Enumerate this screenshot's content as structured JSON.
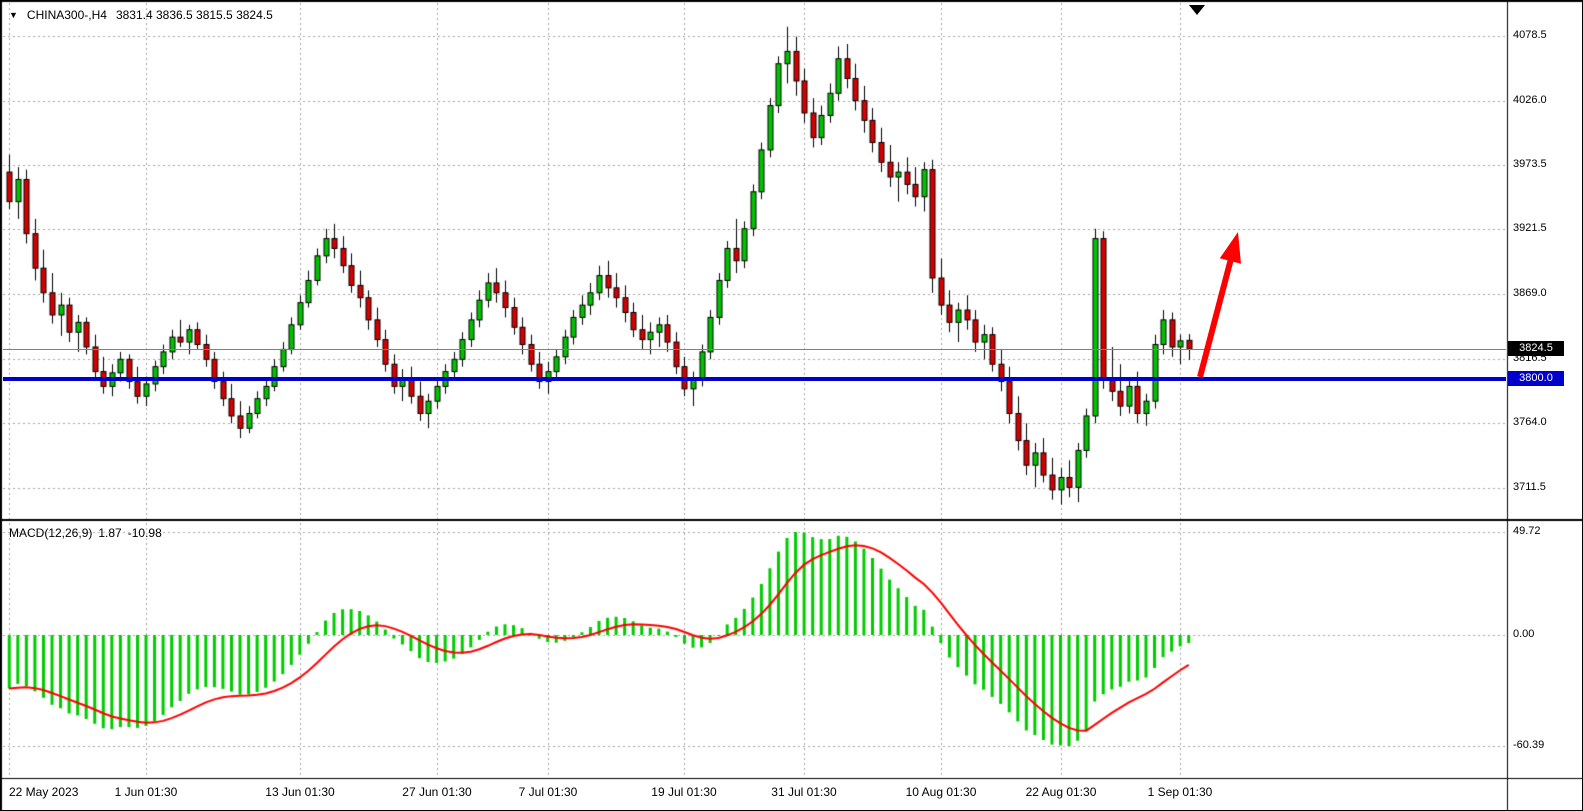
{
  "header": {
    "dropdown_icon": "▼",
    "symbol_period": "CHINA300-,H4",
    "ohlc_values": "3831.4 3836.5 3815.5 3824.5"
  },
  "price_scale": {
    "current_price_label": "3824.5",
    "hline_label": "3800.0"
  },
  "macd_panel": {
    "name": "MACD(12,26,9)",
    "main_value": "1.87",
    "signal_value": "-10.98"
  },
  "colors": {
    "bull": "#00C400",
    "bear": "#D80000",
    "wick": "#000000",
    "grid": "#A6A6A6",
    "hline": "#0000CD",
    "current_price_line": "#808080",
    "signal": "#FF0000",
    "histogram": "#00CC00",
    "badge_current_bg": "#000000",
    "badge_hline_bg": "#0000CD",
    "arrow": "#FF0000",
    "text": "#000000"
  },
  "chart_data": [
    {
      "type": "candlestick",
      "title": "CHINA300-,H4",
      "timeframe": "H4",
      "grid": "dashed",
      "legend_position": "none",
      "ylim": [
        3686,
        4107
      ],
      "y_ticks": [
        4078.5,
        4026.0,
        3973.5,
        3921.5,
        3869.0,
        3816.5,
        3764.0,
        3711.5
      ],
      "x_tick_labels": [
        "22 May 2023",
        "1 Jun 01:30",
        "13 Jun 01:30",
        "27 Jun 01:30",
        "7 Jul 01:30",
        "19 Jul 01:30",
        "31 Jul 01:30",
        "10 Aug 01:30",
        "22 Aug 01:30",
        "1 Sep 01:30"
      ],
      "x_tick_indices": [
        0,
        16,
        34,
        50,
        63,
        79,
        93,
        109,
        123,
        137
      ],
      "current_price": 3824.5,
      "support_line": {
        "value": 3800.0,
        "label": "3800.0"
      },
      "annotations": [
        {
          "type": "arrow-up",
          "meaning": "bullish-projection"
        }
      ],
      "ohlc": [
        [
          3968,
          3982,
          3938,
          3944
        ],
        [
          3944,
          3972,
          3930,
          3962
        ],
        [
          3962,
          3970,
          3910,
          3918
        ],
        [
          3918,
          3930,
          3880,
          3890
        ],
        [
          3890,
          3905,
          3862,
          3870
        ],
        [
          3870,
          3886,
          3845,
          3852
        ],
        [
          3852,
          3870,
          3835,
          3860
        ],
        [
          3860,
          3866,
          3830,
          3838
        ],
        [
          3838,
          3852,
          3822,
          3846
        ],
        [
          3846,
          3850,
          3820,
          3826
        ],
        [
          3826,
          3836,
          3800,
          3806
        ],
        [
          3806,
          3818,
          3788,
          3794
        ],
        [
          3794,
          3812,
          3786,
          3805
        ],
        [
          3805,
          3822,
          3798,
          3816
        ],
        [
          3816,
          3820,
          3792,
          3798
        ],
        [
          3798,
          3810,
          3780,
          3786
        ],
        [
          3786,
          3802,
          3778,
          3796
        ],
        [
          3796,
          3815,
          3790,
          3810
        ],
        [
          3810,
          3828,
          3804,
          3822
        ],
        [
          3822,
          3840,
          3816,
          3834
        ],
        [
          3834,
          3848,
          3826,
          3830
        ],
        [
          3830,
          3844,
          3820,
          3840
        ],
        [
          3840,
          3846,
          3824,
          3828
        ],
        [
          3828,
          3836,
          3810,
          3816
        ],
        [
          3816,
          3822,
          3792,
          3798
        ],
        [
          3798,
          3806,
          3778,
          3784
        ],
        [
          3784,
          3796,
          3764,
          3770
        ],
        [
          3770,
          3782,
          3752,
          3760
        ],
        [
          3760,
          3778,
          3756,
          3772
        ],
        [
          3772,
          3790,
          3768,
          3784
        ],
        [
          3784,
          3800,
          3778,
          3794
        ],
        [
          3794,
          3816,
          3790,
          3810
        ],
        [
          3810,
          3830,
          3806,
          3824
        ],
        [
          3824,
          3850,
          3820,
          3844
        ],
        [
          3844,
          3868,
          3840,
          3862
        ],
        [
          3862,
          3888,
          3858,
          3880
        ],
        [
          3880,
          3906,
          3876,
          3900
        ],
        [
          3900,
          3922,
          3894,
          3914
        ],
        [
          3914,
          3926,
          3898,
          3906
        ],
        [
          3906,
          3916,
          3886,
          3892
        ],
        [
          3892,
          3902,
          3870,
          3876
        ],
        [
          3876,
          3888,
          3858,
          3866
        ],
        [
          3866,
          3872,
          3840,
          3848
        ],
        [
          3848,
          3858,
          3826,
          3832
        ],
        [
          3832,
          3840,
          3806,
          3812
        ],
        [
          3812,
          3820,
          3788,
          3794
        ],
        [
          3794,
          3808,
          3782,
          3800
        ],
        [
          3800,
          3810,
          3780,
          3786
        ],
        [
          3786,
          3798,
          3766,
          3772
        ],
        [
          3772,
          3788,
          3760,
          3782
        ],
        [
          3782,
          3800,
          3776,
          3794
        ],
        [
          3794,
          3812,
          3788,
          3806
        ],
        [
          3806,
          3822,
          3800,
          3816
        ],
        [
          3816,
          3838,
          3810,
          3832
        ],
        [
          3832,
          3854,
          3826,
          3848
        ],
        [
          3848,
          3872,
          3842,
          3864
        ],
        [
          3864,
          3886,
          3858,
          3878
        ],
        [
          3878,
          3890,
          3862,
          3870
        ],
        [
          3870,
          3880,
          3850,
          3858
        ],
        [
          3858,
          3866,
          3836,
          3842
        ],
        [
          3842,
          3850,
          3820,
          3828
        ],
        [
          3828,
          3836,
          3806,
          3812
        ],
        [
          3812,
          3822,
          3792,
          3798
        ],
        [
          3798,
          3814,
          3788,
          3806
        ],
        [
          3806,
          3824,
          3800,
          3818
        ],
        [
          3818,
          3840,
          3812,
          3834
        ],
        [
          3834,
          3856,
          3828,
          3850
        ],
        [
          3850,
          3868,
          3844,
          3860
        ],
        [
          3860,
          3878,
          3852,
          3870
        ],
        [
          3870,
          3892,
          3864,
          3884
        ],
        [
          3884,
          3896,
          3866,
          3874
        ],
        [
          3874,
          3886,
          3858,
          3866
        ],
        [
          3866,
          3876,
          3846,
          3854
        ],
        [
          3854,
          3862,
          3834,
          3840
        ],
        [
          3840,
          3852,
          3824,
          3832
        ],
        [
          3832,
          3846,
          3820,
          3838
        ],
        [
          3838,
          3850,
          3826,
          3844
        ],
        [
          3844,
          3852,
          3822,
          3830
        ],
        [
          3830,
          3838,
          3804,
          3810
        ],
        [
          3810,
          3818,
          3786,
          3792
        ],
        [
          3792,
          3806,
          3778,
          3800
        ],
        [
          3800,
          3828,
          3794,
          3822
        ],
        [
          3822,
          3856,
          3816,
          3850
        ],
        [
          3850,
          3886,
          3844,
          3880
        ],
        [
          3880,
          3912,
          3874,
          3906
        ],
        [
          3906,
          3930,
          3886,
          3896
        ],
        [
          3896,
          3928,
          3890,
          3922
        ],
        [
          3922,
          3958,
          3916,
          3952
        ],
        [
          3952,
          3992,
          3946,
          3986
        ],
        [
          3986,
          4028,
          3980,
          4022
        ],
        [
          4022,
          4062,
          4016,
          4056
        ],
        [
          4056,
          4086,
          4040,
          4066
        ],
        [
          4066,
          4078,
          4030,
          4042
        ],
        [
          4042,
          4052,
          4008,
          4016
        ],
        [
          4016,
          4028,
          3988,
          3996
        ],
        [
          3996,
          4022,
          3990,
          4014
        ],
        [
          4014,
          4040,
          4008,
          4032
        ],
        [
          4032,
          4070,
          4026,
          4060
        ],
        [
          4060,
          4072,
          4036,
          4044
        ],
        [
          4044,
          4056,
          4018,
          4026
        ],
        [
          4026,
          4038,
          4000,
          4010
        ],
        [
          4010,
          4020,
          3984,
          3992
        ],
        [
          3992,
          4004,
          3968,
          3976
        ],
        [
          3976,
          3990,
          3956,
          3964
        ],
        [
          3964,
          3976,
          3944,
          3968
        ],
        [
          3968,
          3980,
          3950,
          3958
        ],
        [
          3958,
          3972,
          3940,
          3948
        ],
        [
          3948,
          3976,
          3936,
          3970
        ],
        [
          3970,
          3978,
          3870,
          3882
        ],
        [
          3882,
          3898,
          3852,
          3860
        ],
        [
          3860,
          3872,
          3838,
          3846
        ],
        [
          3846,
          3862,
          3830,
          3856
        ],
        [
          3856,
          3868,
          3840,
          3848
        ],
        [
          3848,
          3856,
          3822,
          3830
        ],
        [
          3830,
          3844,
          3816,
          3836
        ],
        [
          3836,
          3842,
          3806,
          3812
        ],
        [
          3812,
          3824,
          3790,
          3798
        ],
        [
          3798,
          3810,
          3764,
          3772
        ],
        [
          3772,
          3786,
          3742,
          3750
        ],
        [
          3750,
          3764,
          3722,
          3730
        ],
        [
          3730,
          3748,
          3712,
          3740
        ],
        [
          3740,
          3752,
          3716,
          3722
        ],
        [
          3722,
          3736,
          3702,
          3710
        ],
        [
          3710,
          3728,
          3698,
          3720
        ],
        [
          3720,
          3734,
          3704,
          3712
        ],
        [
          3712,
          3748,
          3700,
          3742
        ],
        [
          3742,
          3776,
          3736,
          3770
        ],
        [
          3770,
          3922,
          3764,
          3914
        ],
        [
          3914,
          3920,
          3792,
          3800
        ],
        [
          3800,
          3826,
          3782,
          3790
        ],
        [
          3790,
          3812,
          3770,
          3778
        ],
        [
          3778,
          3800,
          3772,
          3794
        ],
        [
          3794,
          3806,
          3764,
          3772
        ],
        [
          3772,
          3788,
          3762,
          3782
        ],
        [
          3782,
          3836,
          3776,
          3828
        ],
        [
          3828,
          3856,
          3820,
          3848
        ],
        [
          3848,
          3854,
          3818,
          3826
        ],
        [
          3826,
          3836,
          3812,
          3831
        ],
        [
          3831.4,
          3836.5,
          3815.5,
          3824.5
        ]
      ]
    },
    {
      "type": "macd",
      "label": "MACD(12,26,9)",
      "fast": 12,
      "slow": 26,
      "signal_period": 9,
      "macd_value": 1.87,
      "signal_value": -10.98,
      "y_ticks": [
        49.72,
        0.0,
        -60.39
      ],
      "grid": "dashed"
    }
  ]
}
